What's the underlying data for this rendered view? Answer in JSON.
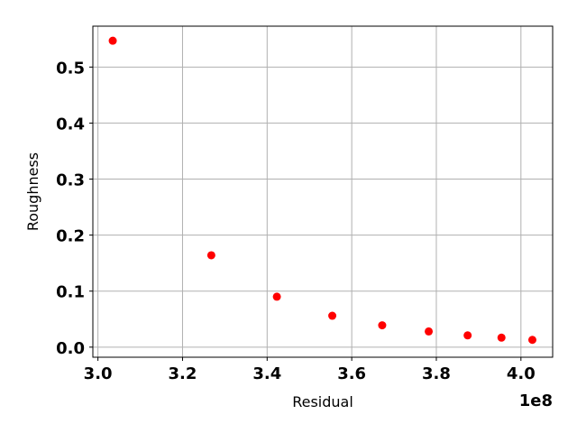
{
  "chart_data": {
    "type": "scatter",
    "title": "",
    "xlabel": "Residual",
    "ylabel": "Roughness",
    "x_offset_label": "1e8",
    "xlim": [
      2.988,
      4.075
    ],
    "ylim": [
      -0.018,
      0.573
    ],
    "xticks": [
      3.0,
      3.2,
      3.4,
      3.6,
      3.8,
      4.0
    ],
    "xtick_labels": [
      "3.0",
      "3.2",
      "3.4",
      "3.6",
      "3.8",
      "4.0"
    ],
    "yticks": [
      0.0,
      0.1,
      0.2,
      0.3,
      0.4,
      0.5
    ],
    "ytick_labels": [
      "0.0",
      "0.1",
      "0.2",
      "0.3",
      "0.4",
      "0.5"
    ],
    "grid": true,
    "marker_color": "#ff0000",
    "series": [
      {
        "x": [
          3.035,
          3.268,
          3.423,
          3.554,
          3.672,
          3.782,
          3.874,
          3.954,
          4.027
        ],
        "y": [
          0.547,
          0.164,
          0.09,
          0.056,
          0.039,
          0.028,
          0.021,
          0.017,
          0.013
        ]
      }
    ]
  }
}
